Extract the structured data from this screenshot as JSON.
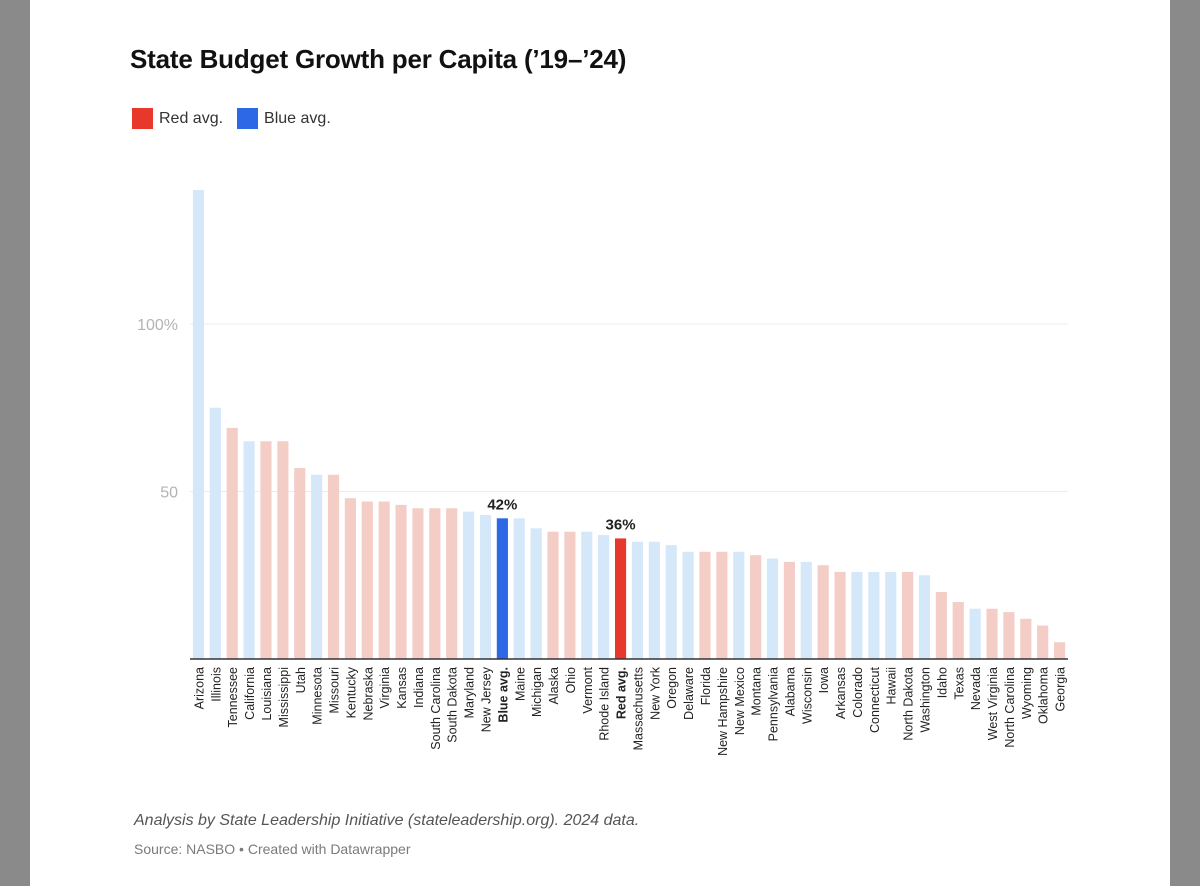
{
  "title": "State Budget Growth per Capita (’19–’24)",
  "legend": [
    {
      "label": "Red avg.",
      "color": "#e8382b"
    },
    {
      "label": "Blue avg.",
      "color": "#2d68e6"
    }
  ],
  "colors": {
    "red_light": "#f4cdc7",
    "blue_light": "#d4e8f9",
    "red_avg": "#e8382b",
    "blue_avg": "#2d68e6",
    "grid": "#ececec",
    "axis": "#333333"
  },
  "chart_data": {
    "type": "bar",
    "title": "State Budget Growth per Capita (’19–’24)",
    "xlabel": "",
    "ylabel": "",
    "ylim": [
      0,
      140
    ],
    "yticks": [
      {
        "value": 50,
        "label": "50"
      },
      {
        "value": 100,
        "label": "100%"
      }
    ],
    "categories": [
      "Arizona",
      "Illinois",
      "Tennessee",
      "California",
      "Louisiana",
      "Mississippi",
      "Utah",
      "Minnesota",
      "Missouri",
      "Kentucky",
      "Nebraska",
      "Virginia",
      "Kansas",
      "Indiana",
      "South Carolina",
      "South Dakota",
      "Maryland",
      "New Jersey",
      "Blue avg.",
      "Maine",
      "Michigan",
      "Alaska",
      "Ohio",
      "Vermont",
      "Rhode Island",
      "Red avg.",
      "Massachusetts",
      "New York",
      "Oregon",
      "Delaware",
      "Florida",
      "New Hampshire",
      "New Mexico",
      "Montana",
      "Pennsylvania",
      "Alabama",
      "Wisconsin",
      "Iowa",
      "Arkansas",
      "Colorado",
      "Connecticut",
      "Hawaii",
      "North Dakota",
      "Washington",
      "Idaho",
      "Texas",
      "Nevada",
      "West Virginia",
      "North Carolina",
      "Wyoming",
      "Oklahoma",
      "Georgia"
    ],
    "values": [
      140,
      75,
      69,
      65,
      65,
      65,
      57,
      55,
      55,
      48,
      47,
      47,
      46,
      45,
      45,
      45,
      44,
      43,
      42,
      42,
      39,
      38,
      38,
      38,
      37,
      36,
      35,
      35,
      34,
      32,
      32,
      32,
      32,
      31,
      30,
      29,
      29,
      28,
      26,
      26,
      26,
      26,
      26,
      25,
      20,
      17,
      15,
      15,
      14,
      12,
      10,
      5
    ],
    "party": [
      "blue",
      "blue",
      "red",
      "blue",
      "red",
      "red",
      "red",
      "blue",
      "red",
      "red",
      "red",
      "red",
      "red",
      "red",
      "red",
      "red",
      "blue",
      "blue",
      "blue_avg",
      "blue",
      "blue",
      "red",
      "red",
      "blue",
      "blue",
      "red_avg",
      "blue",
      "blue",
      "blue",
      "blue",
      "red",
      "red",
      "blue",
      "red",
      "blue",
      "red",
      "blue",
      "red",
      "red",
      "blue",
      "blue",
      "blue",
      "red",
      "blue",
      "red",
      "red",
      "blue",
      "red",
      "red",
      "red",
      "red",
      "red"
    ],
    "annotations": [
      {
        "category": "Blue avg.",
        "label": "42%"
      },
      {
        "category": "Red avg.",
        "label": "36%"
      }
    ],
    "bold_categories": [
      "Blue avg.",
      "Red avg."
    ]
  },
  "footer": {
    "analysis": "Analysis by State Leadership Initiative (stateleadership.org). 2024 data.",
    "source": "Source: NASBO",
    "separator": " • ",
    "created": "Created with Datawrapper"
  }
}
